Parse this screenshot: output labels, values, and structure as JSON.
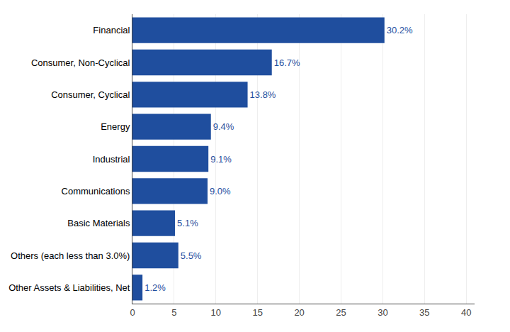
{
  "chart_data": {
    "type": "bar",
    "orientation": "horizontal",
    "categories": [
      "Other Assets & Liabilities, Net",
      "Others (each less than 3.0%)",
      "Basic Materials",
      "Communications",
      "Industrial",
      "Energy",
      "Consumer, Cyclical",
      "Consumer, Non-Cyclical",
      "Financial"
    ],
    "values": [
      1.2,
      5.5,
      5.1,
      9.0,
      9.1,
      9.4,
      13.8,
      16.7,
      30.2
    ],
    "value_labels": [
      "1.2%",
      "5.5%",
      "5.1%",
      "9.0%",
      "9.1%",
      "9.4%",
      "13.8%",
      "16.7%",
      "30.2%"
    ],
    "color": "#1F4E9E",
    "xlim": [
      0,
      41
    ],
    "xticks": [
      0,
      5,
      10,
      15,
      20,
      25,
      30,
      35,
      40
    ],
    "grid": true,
    "data_labels": true
  }
}
